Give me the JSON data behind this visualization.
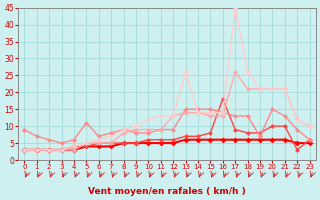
{
  "title": "",
  "xlabel": "Vent moyen/en rafales ( km/h )",
  "ylabel": "",
  "bg_color": "#cef0f0",
  "grid_color": "#aadddd",
  "x_values": [
    0,
    1,
    2,
    3,
    4,
    5,
    6,
    7,
    8,
    9,
    10,
    11,
    12,
    13,
    14,
    15,
    16,
    17,
    18,
    19,
    20,
    21,
    22,
    23
  ],
  "series": [
    {
      "color": "#ff0000",
      "linewidth": 1.5,
      "markersize": 3,
      "values": [
        3,
        3,
        3,
        3,
        3,
        4,
        4,
        4,
        5,
        5,
        5,
        5,
        5,
        6,
        6,
        6,
        6,
        6,
        6,
        6,
        6,
        6,
        5,
        5
      ]
    },
    {
      "color": "#ff4444",
      "linewidth": 1.0,
      "markersize": 2.5,
      "values": [
        3,
        3,
        3,
        3,
        4,
        4,
        5,
        5,
        5,
        5,
        6,
        6,
        6,
        7,
        7,
        8,
        18,
        9,
        8,
        8,
        10,
        10,
        3,
        6
      ]
    },
    {
      "color": "#ff8888",
      "linewidth": 1.0,
      "markersize": 2.5,
      "values": [
        9,
        7,
        6,
        5,
        6,
        11,
        7,
        8,
        9,
        8,
        8,
        9,
        9,
        15,
        15,
        15,
        14,
        13,
        13,
        7,
        15,
        13,
        9,
        6
      ]
    },
    {
      "color": "#ffaaaa",
      "linewidth": 1.0,
      "markersize": 2.5,
      "values": [
        3,
        3,
        3,
        3,
        3,
        5,
        5,
        5,
        8,
        9,
        9,
        9,
        13,
        14,
        14,
        13,
        13,
        26,
        21,
        21,
        21,
        21,
        12,
        10
      ]
    },
    {
      "color": "#ffcccc",
      "linewidth": 1.0,
      "markersize": 2.5,
      "values": [
        3,
        3,
        3,
        3,
        4,
        5,
        6,
        7,
        9,
        10,
        12,
        13,
        13,
        26,
        14,
        14,
        14,
        45,
        26,
        21,
        21,
        21,
        12,
        10
      ]
    }
  ],
  "ylim": [
    0,
    45
  ],
  "yticks": [
    0,
    5,
    10,
    15,
    20,
    25,
    30,
    35,
    40,
    45
  ],
  "xlim": [
    -0.5,
    23.5
  ],
  "xticks": [
    0,
    1,
    2,
    3,
    4,
    5,
    6,
    7,
    8,
    9,
    10,
    11,
    12,
    13,
    14,
    15,
    16,
    17,
    18,
    19,
    20,
    21,
    22,
    23
  ]
}
